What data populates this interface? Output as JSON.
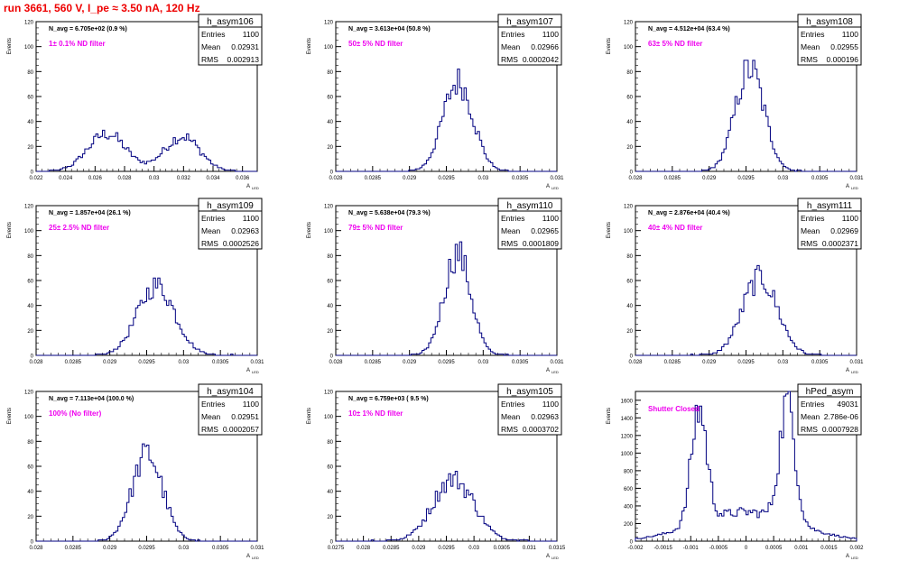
{
  "run_title": "run 3661,   560 V, I_pe ≈ 3.50 nA, 120 Hz",
  "y_axis_label": "Events",
  "x_axis_label": "A",
  "x_axis_subscript": "LED",
  "stats_labels": {
    "entries": "Entries",
    "mean": "Mean",
    "rms": "RMS"
  },
  "colors": {
    "histogram": "#000080",
    "annotation": "#ee00ee",
    "title_text": "#ee0000"
  },
  "chart_data": [
    {
      "type": "histogram",
      "name": "h_asym106",
      "entries": "1100",
      "mean": "0.02931",
      "rms": "0.002913",
      "navg": "N_avg = 6.705e+02 (0.9 %)",
      "filter": "1± 0.1% ND filter",
      "xlim": [
        0.022,
        0.037
      ],
      "ylim": [
        0,
        120
      ],
      "xticks": [
        0.022,
        0.024,
        0.026,
        0.028,
        0.03,
        0.032,
        0.034,
        0.036
      ],
      "xtick_labels": [
        "0.022",
        "0.024",
        "0.026",
        "0.028",
        "0.03",
        "0.032",
        "0.034",
        "0.036"
      ],
      "yticks": [
        0,
        20,
        40,
        60,
        80,
        100,
        120
      ],
      "peaks": [
        {
          "mu": 0.0268,
          "sigma": 0.0013,
          "amp": 30
        },
        {
          "mu": 0.0319,
          "sigma": 0.0012,
          "amp": 28
        }
      ],
      "nbins": 100
    },
    {
      "type": "histogram",
      "name": "h_asym107",
      "entries": "1100",
      "mean": "0.02966",
      "rms": "0.0002042",
      "navg": "N_avg = 3.613e+04 (50.8 %)",
      "filter": "50± 5% ND filter",
      "xlim": [
        0.028,
        0.031
      ],
      "ylim": [
        0,
        120
      ],
      "xticks": [
        0.028,
        0.0285,
        0.029,
        0.0295,
        0.03,
        0.0305,
        0.031
      ],
      "xtick_labels": [
        "0.028",
        "0.0285",
        "0.029",
        "0.0295",
        "0.03",
        "0.0305",
        "0.031"
      ],
      "yticks": [
        0,
        20,
        40,
        60,
        80,
        100,
        120
      ],
      "peaks": [
        {
          "mu": 0.02966,
          "sigma": 0.000204,
          "amp": 72
        }
      ],
      "nbins": 100
    },
    {
      "type": "histogram",
      "name": "h_asym108",
      "entries": "1100",
      "mean": "0.02955",
      "rms": "0.000196",
      "navg": "N_avg = 4.512e+04 (63.4 %)",
      "filter": "63± 5% ND filter",
      "xlim": [
        0.028,
        0.031
      ],
      "ylim": [
        0,
        120
      ],
      "xticks": [
        0.028,
        0.0285,
        0.029,
        0.0295,
        0.03,
        0.0305,
        0.031
      ],
      "xtick_labels": [
        "0.028",
        "0.0285",
        "0.029",
        "0.0295",
        "0.03",
        "0.0305",
        "0.031"
      ],
      "yticks": [
        0,
        20,
        40,
        60,
        80,
        100,
        120
      ],
      "peaks": [
        {
          "mu": 0.02955,
          "sigma": 0.000196,
          "amp": 82
        }
      ],
      "nbins": 100
    },
    {
      "type": "histogram",
      "name": "h_asym109",
      "entries": "1100",
      "mean": "0.02963",
      "rms": "0.0002526",
      "navg": "N_avg = 1.857e+04 (26.1 %)",
      "filter": "25± 2.5% ND filter",
      "xlim": [
        0.028,
        0.031
      ],
      "ylim": [
        0,
        120
      ],
      "xticks": [
        0.028,
        0.0285,
        0.029,
        0.0295,
        0.03,
        0.0305,
        0.031
      ],
      "xtick_labels": [
        "0.028",
        "0.0285",
        "0.029",
        "0.0295",
        "0.03",
        "0.0305",
        "0.031"
      ],
      "yticks": [
        0,
        20,
        40,
        60,
        80,
        100,
        120
      ],
      "peaks": [
        {
          "mu": 0.02963,
          "sigma": 0.000253,
          "amp": 56
        }
      ],
      "nbins": 100
    },
    {
      "type": "histogram",
      "name": "h_asym110",
      "entries": "1100",
      "mean": "0.02965",
      "rms": "0.0001809",
      "navg": "N_avg = 5.638e+04 (79.3 %)",
      "filter": "79± 5% ND filter",
      "xlim": [
        0.028,
        0.031
      ],
      "ylim": [
        0,
        120
      ],
      "xticks": [
        0.028,
        0.0285,
        0.029,
        0.0295,
        0.03,
        0.0305,
        0.031
      ],
      "xtick_labels": [
        "0.028",
        "0.0285",
        "0.029",
        "0.0295",
        "0.03",
        "0.0305",
        "0.031"
      ],
      "yticks": [
        0,
        20,
        40,
        60,
        80,
        100,
        120
      ],
      "peaks": [
        {
          "mu": 0.02965,
          "sigma": 0.000181,
          "amp": 82
        }
      ],
      "nbins": 100
    },
    {
      "type": "histogram",
      "name": "h_asym111",
      "entries": "1100",
      "mean": "0.02969",
      "rms": "0.0002371",
      "navg": "N_avg = 2.876e+04 (40.4 %)",
      "filter": "40± 4% ND filter",
      "xlim": [
        0.028,
        0.031
      ],
      "ylim": [
        0,
        120
      ],
      "xticks": [
        0.028,
        0.0285,
        0.029,
        0.0295,
        0.03,
        0.0305,
        0.031
      ],
      "xtick_labels": [
        "0.028",
        "0.0285",
        "0.029",
        "0.0295",
        "0.03",
        "0.0305",
        "0.031"
      ],
      "yticks": [
        0,
        20,
        40,
        60,
        80,
        100,
        120
      ],
      "peaks": [
        {
          "mu": 0.02969,
          "sigma": 0.000237,
          "amp": 62
        }
      ],
      "nbins": 100
    },
    {
      "type": "histogram",
      "name": "h_asym104",
      "entries": "1100",
      "mean": "0.02951",
      "rms": "0.0002057",
      "navg": "N_avg = 7.113e+04 (100.0 %)",
      "filter": "100% (No filter)",
      "xlim": [
        0.028,
        0.031
      ],
      "ylim": [
        0,
        120
      ],
      "xticks": [
        0.028,
        0.0285,
        0.029,
        0.0295,
        0.03,
        0.0305,
        0.031
      ],
      "xtick_labels": [
        "0.028",
        "0.0285",
        "0.029",
        "0.0295",
        "0.03",
        "0.0305",
        "0.031"
      ],
      "yticks": [
        0,
        20,
        40,
        60,
        80,
        100,
        120
      ],
      "peaks": [
        {
          "mu": 0.02951,
          "sigma": 0.000206,
          "amp": 70
        }
      ],
      "nbins": 100
    },
    {
      "type": "histogram",
      "name": "h_asym105",
      "entries": "1100",
      "mean": "0.02963",
      "rms": "0.0003702",
      "navg": "N_avg = 6.759e+03 ( 9.5 %)",
      "filter": "10± 1% ND filter",
      "xlim": [
        0.0275,
        0.0315
      ],
      "ylim": [
        0,
        120
      ],
      "xticks": [
        0.0275,
        0.028,
        0.0285,
        0.029,
        0.0295,
        0.03,
        0.0305,
        0.031,
        0.0315
      ],
      "xtick_labels": [
        "0.0275",
        "0.028",
        "0.0285",
        "0.029",
        "0.0295",
        "0.03",
        "0.0305",
        "0.031",
        "0.0315"
      ],
      "yticks": [
        0,
        20,
        40,
        60,
        80,
        100,
        120
      ],
      "peaks": [
        {
          "mu": 0.02963,
          "sigma": 0.00037,
          "amp": 50
        }
      ],
      "nbins": 100
    },
    {
      "type": "histogram",
      "name": "hPed_asym",
      "entries": "49031",
      "mean": "2.786e-06",
      "rms": "0.0007928",
      "navg": "",
      "filter": "Shutter Closed",
      "xlim": [
        -0.002,
        0.002
      ],
      "ylim": [
        0,
        1700
      ],
      "xticks": [
        -0.002,
        -0.0015,
        -0.001,
        -0.0005,
        0,
        0.0005,
        0.001,
        0.0015,
        0.002
      ],
      "xtick_labels": [
        "-0.002",
        "-0.0015",
        "-0.001",
        "-0.0005",
        "0",
        "0.0005",
        "0.001",
        "0.0015",
        "0.002"
      ],
      "yticks": [
        0,
        200,
        400,
        600,
        800,
        1000,
        1200,
        1400,
        1600
      ],
      "peaks": [
        {
          "mu": -0.00085,
          "sigma": 0.00014,
          "amp": 1300
        },
        {
          "mu": 0.00075,
          "sigma": 0.00014,
          "amp": 1350
        },
        {
          "mu": 0.0,
          "sigma": 0.0009,
          "amp": 330
        }
      ],
      "nbins": 100
    }
  ]
}
